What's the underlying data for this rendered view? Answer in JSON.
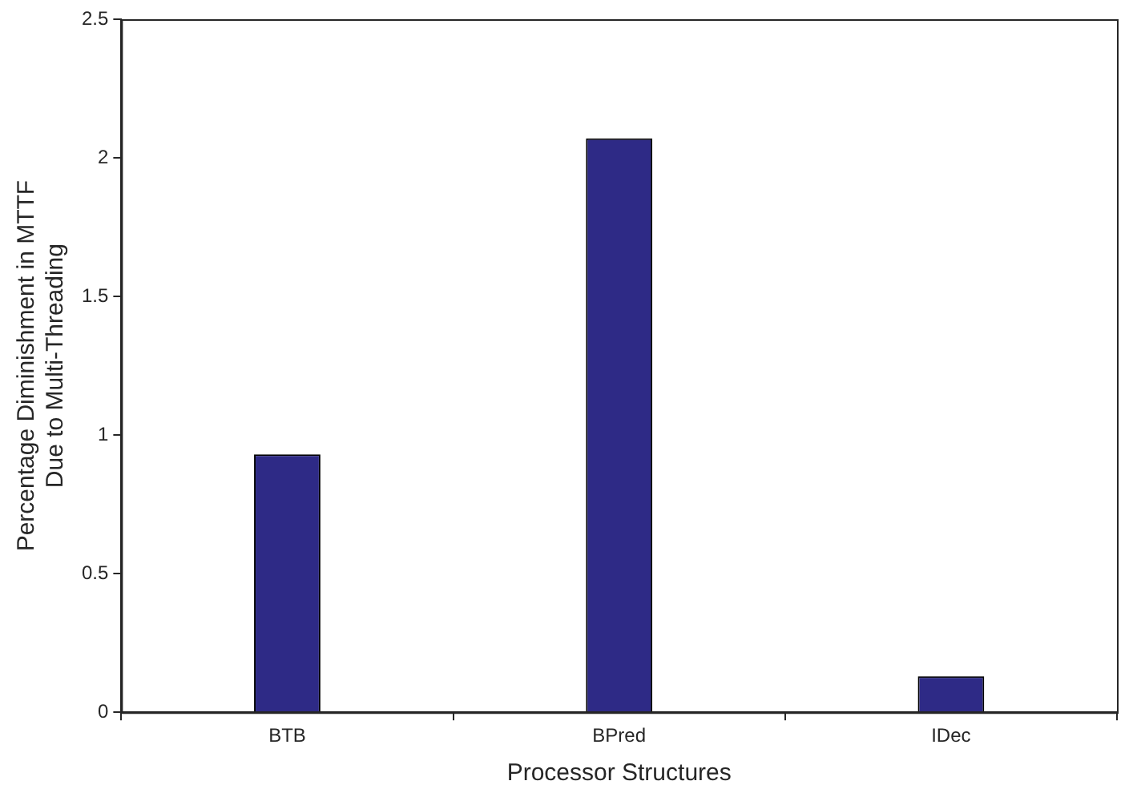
{
  "chart_data": {
    "type": "bar",
    "xlabel": "Processor Structures",
    "ylabel": "Percentage Diminishment in MTTF\nDue to Multi-Threading",
    "categories": [
      "BTB",
      "BPred",
      "IDec"
    ],
    "values": [
      0.93,
      2.07,
      0.13
    ],
    "color": "#2e2a86",
    "ylim": [
      0,
      2.5
    ],
    "yticks": [
      0,
      0.5,
      1,
      1.5,
      2,
      2.5
    ],
    "grid": false,
    "legend": false
  }
}
